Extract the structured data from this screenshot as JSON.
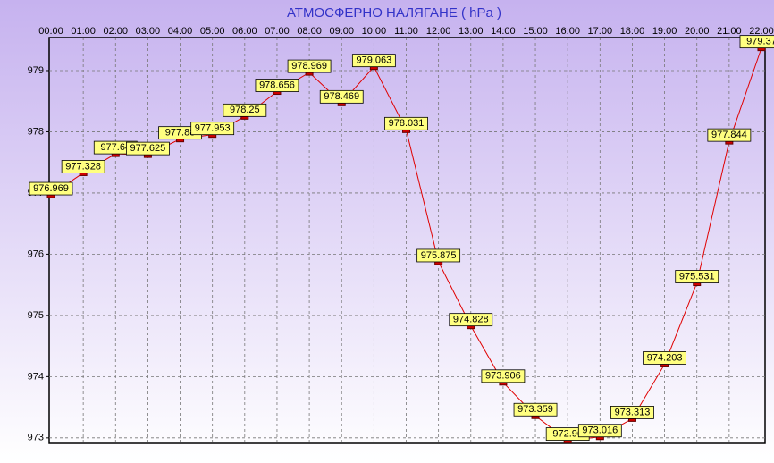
{
  "chart_data": {
    "type": "line",
    "title": "АТМОСФЕРНО НАЛЯГАНЕ  ( hPa )",
    "categories": [
      "00:00",
      "01:00",
      "02:00",
      "03:00",
      "04:00",
      "05:00",
      "06:00",
      "07:00",
      "08:00",
      "09:00",
      "10:00",
      "11:00",
      "12:00",
      "13:00",
      "14:00",
      "15:00",
      "16:00",
      "17:00",
      "18:00",
      "19:00",
      "20:00",
      "21:00",
      "22:00"
    ],
    "series": [
      {
        "name": "hPa",
        "color": "#e00000",
        "values": [
          976.969,
          977.328,
          977.64,
          977.625,
          977.88,
          977.953,
          978.25,
          978.656,
          978.969,
          978.469,
          979.063,
          978.031,
          975.875,
          974.828,
          973.906,
          973.359,
          972.96,
          973.016,
          973.313,
          974.203,
          975.531,
          977.844,
          979.37
        ]
      }
    ],
    "ylim": [
      972.91,
      979.54
    ],
    "yticks": [
      973,
      974,
      975,
      976,
      977,
      978,
      979
    ],
    "grid": true
  }
}
